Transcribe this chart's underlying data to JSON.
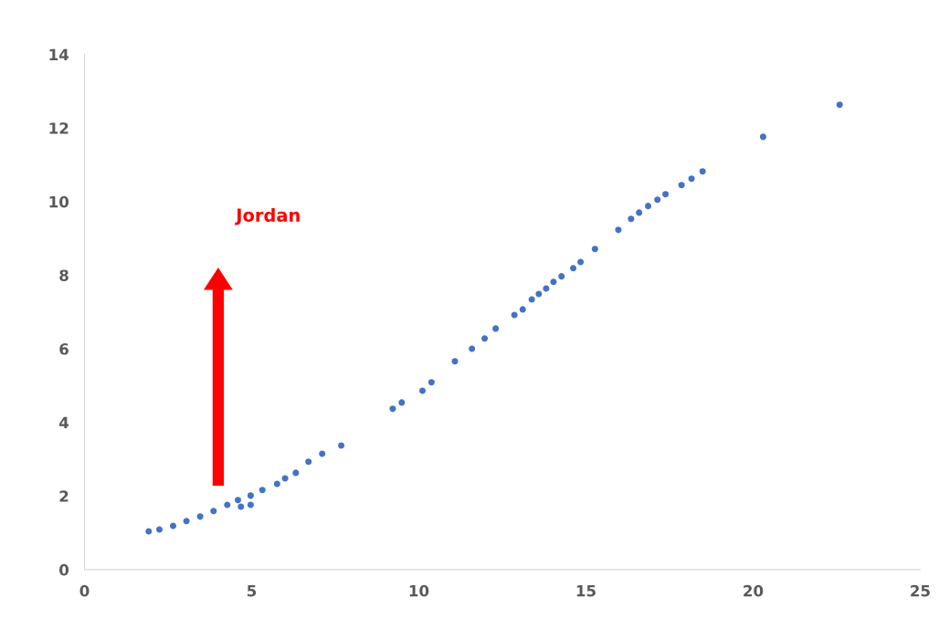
{
  "chart_data": {
    "type": "scatter",
    "marker": "circle",
    "grid": false,
    "xlim": [
      0,
      25
    ],
    "ylim": [
      0,
      14
    ],
    "xticks": [
      0,
      5,
      10,
      15,
      20,
      25
    ],
    "yticks": [
      0,
      2,
      4,
      6,
      8,
      10,
      12,
      14
    ],
    "annotations": [
      "Jordan"
    ],
    "series": [
      {
        "color": "#4472c4",
        "x": [
          1.92,
          2.24,
          2.65,
          3.05,
          3.46,
          3.86,
          4.27,
          4.59,
          4.68,
          4.97,
          4.97,
          5.32,
          5.76,
          6.0,
          6.32,
          6.7,
          7.11,
          7.68,
          9.22,
          9.49,
          10.11,
          10.38,
          11.08,
          11.59,
          11.97,
          12.3,
          12.86,
          13.11,
          13.38,
          13.59,
          13.81,
          14.03,
          14.27,
          14.62,
          14.84,
          15.27,
          15.97,
          16.35,
          16.59,
          16.86,
          17.14,
          17.38,
          17.86,
          18.16,
          18.49,
          20.3,
          22.59
        ],
        "values": [
          1.04,
          1.09,
          1.19,
          1.32,
          1.44,
          1.59,
          1.76,
          1.89,
          1.71,
          1.76,
          2.01,
          2.16,
          2.33,
          2.48,
          2.63,
          2.93,
          3.15,
          3.37,
          4.37,
          4.54,
          4.86,
          5.09,
          5.66,
          6.0,
          6.28,
          6.55,
          6.92,
          7.07,
          7.34,
          7.49,
          7.64,
          7.82,
          7.97,
          8.19,
          8.36,
          8.71,
          9.23,
          9.53,
          9.7,
          9.88,
          10.05,
          10.2,
          10.45,
          10.62,
          10.82,
          11.76,
          12.63
        ]
      }
    ]
  }
}
